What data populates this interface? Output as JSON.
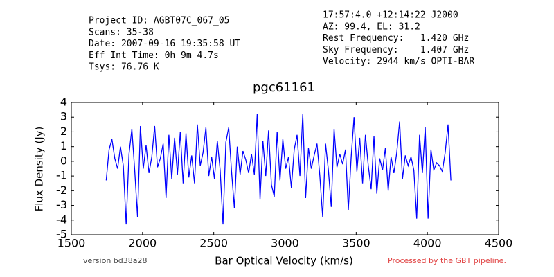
{
  "chart_data": {
    "type": "line",
    "title": "pgc61161",
    "xlabel": "Bar Optical Velocity (km/s)",
    "ylabel": "Flux Density (Jy)",
    "header_left": [
      "Project ID: AGBT07C_067_05",
      "Scans: 35-38",
      "Date: 2007-09-16 19:35:58 UT",
      "Eff Int Time: 0h 9m 4.7s",
      "Tsys: 76.76 K"
    ],
    "header_right": [
      "17:57:4.0 +12:14:22 J2000",
      "AZ: 99.4, EL: 31.2",
      "Rest Frequency:   1.420 GHz",
      "Sky Frequency:    1.407 GHz",
      "Velocity: 2944 km/s OPTI-BAR"
    ],
    "footer_left": "version bd38a28",
    "footer_right": "Processed by the GBT pipeline.",
    "xlim": [
      1500,
      4500
    ],
    "xticks": [
      1500,
      2000,
      2500,
      3000,
      3500,
      4000,
      4500
    ],
    "ylim": [
      -5,
      4
    ],
    "yticks": [
      -5,
      -4,
      -3,
      -2,
      -1,
      0,
      1,
      2,
      3,
      4
    ],
    "x": [
      1745,
      1765,
      1785,
      1805,
      1825,
      1845,
      1865,
      1885,
      1905,
      1925,
      1945,
      1965,
      1985,
      2005,
      2025,
      2045,
      2065,
      2085,
      2105,
      2125,
      2145,
      2165,
      2185,
      2205,
      2225,
      2245,
      2265,
      2285,
      2305,
      2325,
      2345,
      2365,
      2385,
      2405,
      2425,
      2445,
      2465,
      2485,
      2505,
      2525,
      2545,
      2565,
      2585,
      2605,
      2625,
      2645,
      2665,
      2685,
      2705,
      2725,
      2745,
      2765,
      2785,
      2805,
      2825,
      2845,
      2865,
      2885,
      2905,
      2925,
      2945,
      2965,
      2985,
      3005,
      3025,
      3045,
      3065,
      3085,
      3105,
      3125,
      3145,
      3165,
      3185,
      3205,
      3225,
      3245,
      3265,
      3285,
      3305,
      3325,
      3345,
      3365,
      3385,
      3405,
      3425,
      3445,
      3465,
      3485,
      3505,
      3525,
      3545,
      3565,
      3585,
      3605,
      3625,
      3645,
      3665,
      3685,
      3705,
      3725,
      3745,
      3765,
      3785,
      3805,
      3825,
      3845,
      3865,
      3885,
      3905,
      3925,
      3945,
      3965,
      3985,
      4005,
      4025,
      4045,
      4065,
      4085,
      4105,
      4125,
      4145,
      4165
    ],
    "series": [
      {
        "color": "#0000ff",
        "values": [
          -1.3,
          0.8,
          1.5,
          0.2,
          -0.5,
          1.0,
          -0.3,
          -4.3,
          0.5,
          2.2,
          -0.6,
          -3.8,
          2.4,
          -0.5,
          1.1,
          -0.8,
          0.3,
          2.4,
          -0.4,
          0.2,
          1.2,
          -2.5,
          1.8,
          -1.2,
          1.6,
          -0.9,
          2.0,
          -1.5,
          1.9,
          -1.1,
          0.4,
          -1.5,
          2.5,
          -0.3,
          0.6,
          2.3,
          -1.0,
          0.3,
          -1.2,
          1.4,
          -0.6,
          -4.3,
          1.3,
          2.3,
          -0.7,
          -3.2,
          1.0,
          -0.9,
          0.7,
          0.1,
          -0.8,
          0.5,
          -0.9,
          3.2,
          -2.6,
          1.4,
          -1.0,
          2.1,
          -1.6,
          -2.4,
          2.0,
          -1.3,
          1.5,
          -0.5,
          0.3,
          -1.8,
          0.8,
          1.8,
          -1.0,
          3.2,
          -2.5,
          0.9,
          -0.5,
          0.4,
          1.2,
          -1.0,
          -3.8,
          1.2,
          -0.6,
          -3.1,
          2.2,
          -0.4,
          0.5,
          -0.2,
          0.8,
          -3.3,
          0.3,
          3.0,
          -0.7,
          1.6,
          -1.5,
          1.8,
          -0.3,
          -1.9,
          1.7,
          -2.2,
          0.2,
          -0.6,
          0.9,
          -2.0,
          0.3,
          -0.8,
          0.6,
          2.7,
          -1.2,
          0.4,
          -0.3,
          0.3,
          -0.6,
          -3.9,
          1.8,
          -0.8,
          2.3,
          -3.9,
          0.8,
          -0.6,
          -0.1,
          -0.3,
          -0.7,
          0.6,
          2.5,
          -1.3
        ]
      }
    ]
  }
}
